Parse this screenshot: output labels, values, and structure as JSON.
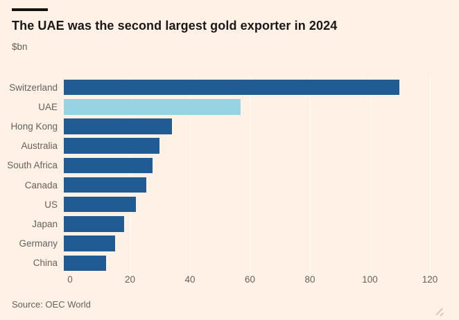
{
  "header": {
    "title": "The UAE was the second largest gold exporter in 2024",
    "subtitle": "$bn"
  },
  "chart_data": {
    "type": "bar",
    "orientation": "horizontal",
    "title": "The UAE was the second largest gold exporter in 2024",
    "unit_label": "$bn",
    "categories": [
      "Switzerland",
      "UAE",
      "Hong Kong",
      "Australia",
      "South Africa",
      "Canada",
      "US",
      "Japan",
      "Germany",
      "China"
    ],
    "values": [
      112,
      59,
      36,
      32,
      29.5,
      27.5,
      24,
      20,
      17,
      14
    ],
    "highlight_category": "UAE",
    "x_ticks": [
      0,
      20,
      40,
      60,
      80,
      100,
      120
    ],
    "xlim": [
      0,
      120
    ],
    "grid": "vertical-faint",
    "legend": "none",
    "bar_color": "#215B94",
    "highlight_color": "#96D3E3"
  },
  "footer": {
    "source": "Source: OEC World"
  },
  "colors": {
    "background": "#FFF1E5",
    "top_rule": "#141210",
    "title_text": "#1A1817",
    "secondary_text": "#66605C",
    "bar": "#215B94",
    "bar_highlight": "#96D3E3",
    "gridline": "rgba(255,255,255,0.65)"
  }
}
